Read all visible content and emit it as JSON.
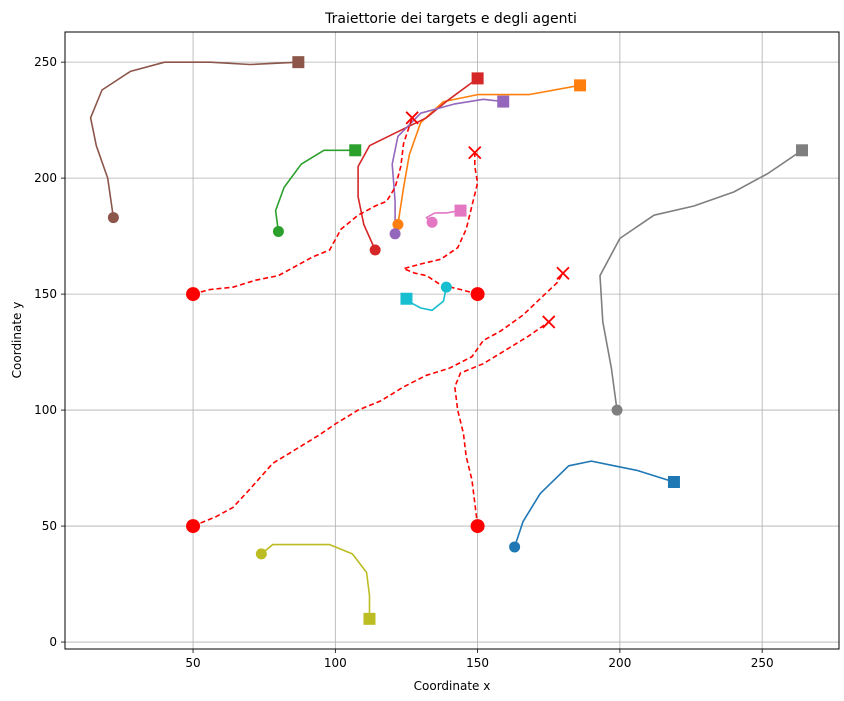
{
  "chart_data": {
    "type": "line",
    "title": "Traiettorie dei targets e degli agenti",
    "xlabel": "Coordinate x",
    "ylabel": "Coordinate y",
    "xlim": [
      5,
      277
    ],
    "ylim": [
      -3,
      263
    ],
    "xticks": [
      50,
      100,
      150,
      200,
      250
    ],
    "yticks": [
      0,
      50,
      100,
      150,
      200,
      250
    ],
    "grid": true,
    "colors": {
      "agent_path": "#ff0000",
      "blue": "#1f77b4",
      "orange": "#ff7f0e",
      "green": "#2ca02c",
      "red": "#d62728",
      "purple": "#9467bd",
      "brown": "#8c564b",
      "pink": "#e377c2",
      "gray": "#7f7f7f",
      "olive": "#bcbd22",
      "cyan": "#17becf"
    },
    "agents": [
      {
        "start": [
          50,
          150
        ],
        "end": [
          127,
          226
        ],
        "path": [
          [
            50,
            150
          ],
          [
            56,
            152
          ],
          [
            64,
            153
          ],
          [
            72,
            156
          ],
          [
            80,
            158
          ],
          [
            86,
            162
          ],
          [
            92,
            166
          ],
          [
            98,
            169
          ],
          [
            102,
            178
          ],
          [
            108,
            184
          ],
          [
            114,
            188
          ],
          [
            118,
            190
          ],
          [
            121,
            196
          ],
          [
            123,
            205
          ],
          [
            124,
            215
          ],
          [
            127,
            226
          ]
        ]
      },
      {
        "start": [
          150,
          150
        ],
        "end": [
          149,
          211
        ],
        "path": [
          [
            150,
            150
          ],
          [
            144,
            152
          ],
          [
            137,
            154
          ],
          [
            132,
            158
          ],
          [
            128,
            159
          ],
          [
            124,
            161
          ],
          [
            130,
            163
          ],
          [
            137,
            165
          ],
          [
            143,
            170
          ],
          [
            146,
            178
          ],
          [
            148,
            188
          ],
          [
            150,
            198
          ],
          [
            149,
            205
          ],
          [
            149,
            211
          ]
        ]
      },
      {
        "start": [
          50,
          50
        ],
        "end": [
          180,
          159
        ],
        "path": [
          [
            50,
            50
          ],
          [
            58,
            54
          ],
          [
            64,
            58
          ],
          [
            70,
            66
          ],
          [
            78,
            77
          ],
          [
            86,
            83
          ],
          [
            94,
            89
          ],
          [
            100,
            94
          ],
          [
            108,
            100
          ],
          [
            116,
            104
          ],
          [
            124,
            110
          ],
          [
            132,
            115
          ],
          [
            140,
            118
          ],
          [
            148,
            123
          ],
          [
            152,
            130
          ],
          [
            158,
            134
          ],
          [
            166,
            141
          ],
          [
            172,
            148
          ],
          [
            178,
            155
          ],
          [
            180,
            159
          ]
        ]
      },
      {
        "start": [
          150,
          50
        ],
        "end": [
          175,
          138
        ],
        "path": [
          [
            150,
            50
          ],
          [
            149,
            60
          ],
          [
            148,
            70
          ],
          [
            146,
            80
          ],
          [
            145,
            90
          ],
          [
            143,
            100
          ],
          [
            142,
            110
          ],
          [
            144,
            116
          ],
          [
            152,
            120
          ],
          [
            160,
            126
          ],
          [
            168,
            132
          ],
          [
            175,
            138
          ]
        ]
      }
    ],
    "targets": [
      {
        "color": "blue",
        "start": [
          163,
          41
        ],
        "end": [
          219,
          69
        ],
        "path": [
          [
            163,
            41
          ],
          [
            166,
            52
          ],
          [
            172,
            64
          ],
          [
            182,
            76
          ],
          [
            190,
            78
          ],
          [
            198,
            76
          ],
          [
            206,
            74
          ],
          [
            219,
            69
          ]
        ]
      },
      {
        "color": "orange",
        "start": [
          122,
          180
        ],
        "end": [
          186,
          240
        ],
        "path": [
          [
            122,
            180
          ],
          [
            124,
            196
          ],
          [
            126,
            210
          ],
          [
            130,
            224
          ],
          [
            138,
            233
          ],
          [
            150,
            236
          ],
          [
            168,
            236
          ],
          [
            186,
            240
          ]
        ]
      },
      {
        "color": "green",
        "start": [
          80,
          177
        ],
        "end": [
          107,
          212
        ],
        "path": [
          [
            80,
            177
          ],
          [
            79,
            186
          ],
          [
            82,
            196
          ],
          [
            88,
            206
          ],
          [
            96,
            212
          ],
          [
            107,
            212
          ]
        ]
      },
      {
        "color": "red",
        "start": [
          114,
          169
        ],
        "end": [
          150,
          243
        ],
        "path": [
          [
            114,
            169
          ],
          [
            110,
            180
          ],
          [
            108,
            192
          ],
          [
            108,
            205
          ],
          [
            112,
            214
          ],
          [
            122,
            220
          ],
          [
            132,
            226
          ],
          [
            140,
            234
          ],
          [
            150,
            243
          ]
        ]
      },
      {
        "color": "purple",
        "start": [
          121,
          176
        ],
        "end": [
          159,
          233
        ],
        "path": [
          [
            121,
            176
          ],
          [
            121,
            190
          ],
          [
            120,
            206
          ],
          [
            122,
            218
          ],
          [
            130,
            228
          ],
          [
            142,
            232
          ],
          [
            152,
            234
          ],
          [
            159,
            233
          ]
        ]
      },
      {
        "color": "brown",
        "start": [
          22,
          183
        ],
        "end": [
          87,
          250
        ],
        "path": [
          [
            22,
            183
          ],
          [
            20,
            200
          ],
          [
            16,
            214
          ],
          [
            14,
            226
          ],
          [
            18,
            238
          ],
          [
            28,
            246
          ],
          [
            40,
            250
          ],
          [
            56,
            250
          ],
          [
            70,
            249
          ],
          [
            87,
            250
          ]
        ]
      },
      {
        "color": "pink",
        "start": [
          134,
          181
        ],
        "end": [
          144,
          186
        ],
        "path": [
          [
            134,
            181
          ],
          [
            132,
            183
          ],
          [
            135,
            185
          ],
          [
            139,
            185
          ],
          [
            144,
            186
          ]
        ]
      },
      {
        "color": "gray",
        "start": [
          199,
          100
        ],
        "end": [
          264,
          212
        ],
        "path": [
          [
            199,
            100
          ],
          [
            197,
            118
          ],
          [
            194,
            138
          ],
          [
            193,
            158
          ],
          [
            200,
            174
          ],
          [
            212,
            184
          ],
          [
            226,
            188
          ],
          [
            240,
            194
          ],
          [
            252,
            202
          ],
          [
            264,
            212
          ]
        ]
      },
      {
        "color": "olive",
        "start": [
          74,
          38
        ],
        "end": [
          112,
          10
        ],
        "path": [
          [
            74,
            38
          ],
          [
            78,
            42
          ],
          [
            88,
            42
          ],
          [
            98,
            42
          ],
          [
            106,
            38
          ],
          [
            111,
            30
          ],
          [
            112,
            20
          ],
          [
            112,
            10
          ]
        ]
      },
      {
        "color": "cyan",
        "start": [
          139,
          153
        ],
        "end": [
          125,
          148
        ],
        "path": [
          [
            139,
            153
          ],
          [
            138,
            147
          ],
          [
            134,
            143
          ],
          [
            130,
            144
          ],
          [
            127,
            146
          ],
          [
            125,
            148
          ]
        ]
      }
    ]
  }
}
